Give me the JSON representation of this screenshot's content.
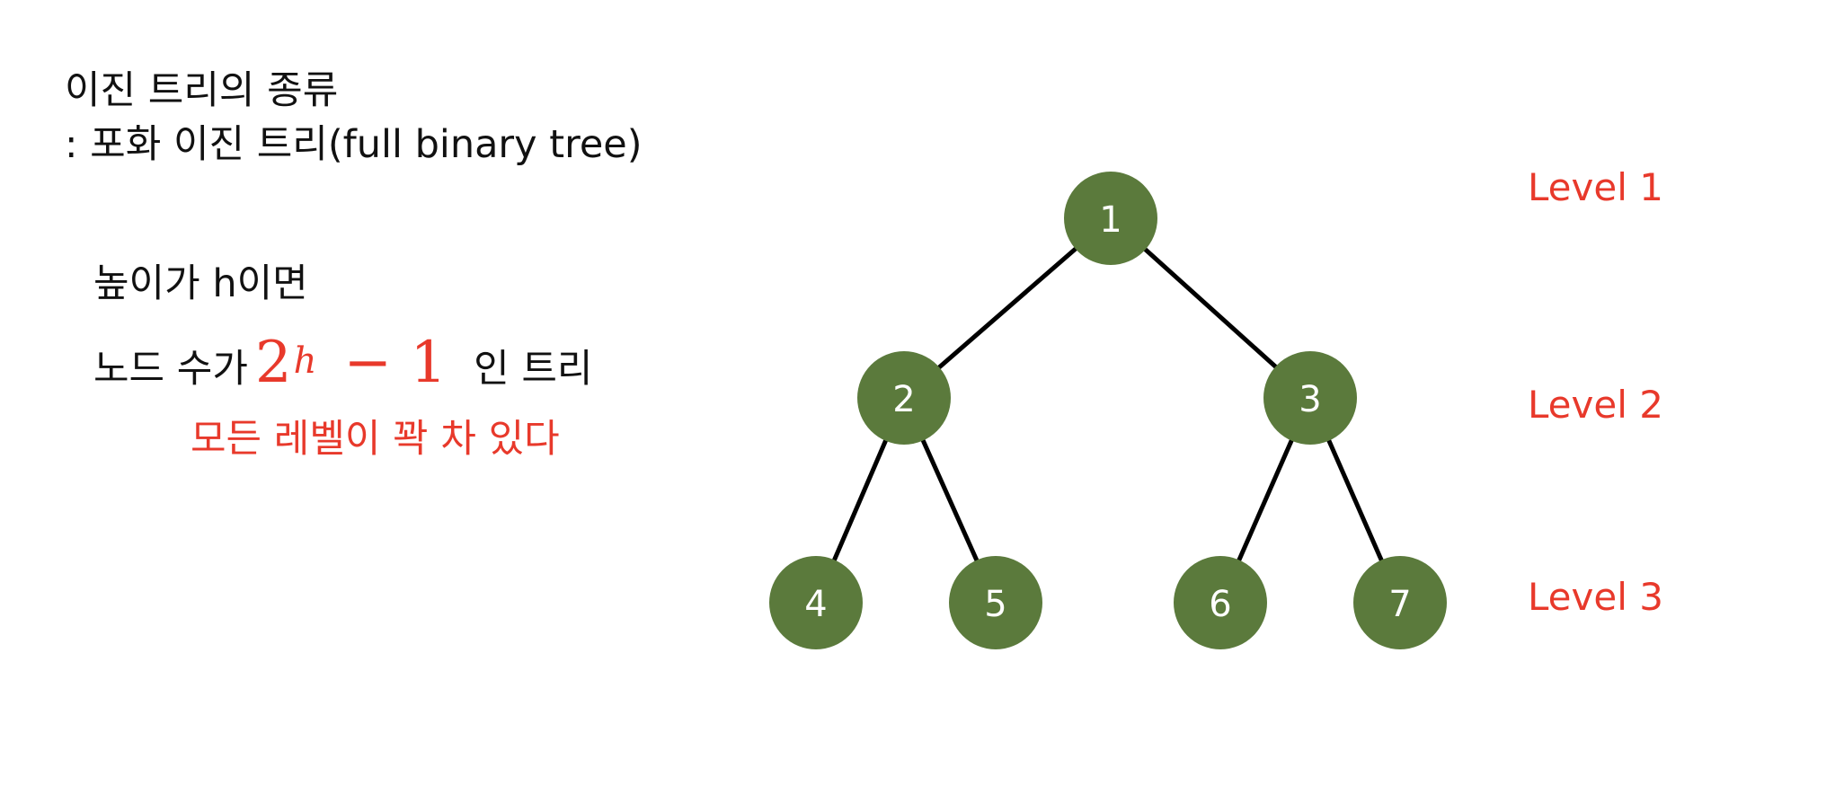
{
  "title": "이진 트리의 종류",
  "subtitle": ": 포화 이진 트리(full binary tree)",
  "description": {
    "line1": "높이가 h이면",
    "line2_prefix": "노드 수가",
    "formula_base": "2",
    "formula_exp": "h",
    "formula_rest": "− 1",
    "line2_suffix": "인 트리",
    "note": "모든 레벨이 꽉 차 있다"
  },
  "levels": [
    "Level 1",
    "Level 2",
    "Level 3"
  ],
  "tree": {
    "nodes": [
      "1",
      "2",
      "3",
      "4",
      "5",
      "6",
      "7"
    ],
    "node_color": "#5b7a3c",
    "edge_color": "#000000"
  },
  "colors": {
    "accent": "#e8392b",
    "text": "#111111"
  }
}
